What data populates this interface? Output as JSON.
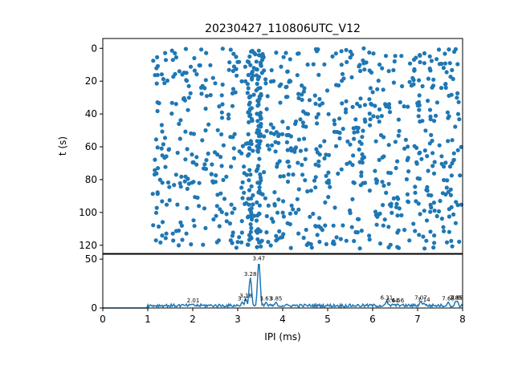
{
  "title": "20230427_110806UTC_V12",
  "chart_data": [
    {
      "type": "scatter",
      "name": "raster",
      "ylabel": "t (s)",
      "xlim": [
        0,
        8
      ],
      "ylim": [
        125,
        -6
      ],
      "yticks": [
        0,
        20,
        40,
        60,
        80,
        100,
        120
      ],
      "ytick_labels": [
        "0",
        "20",
        "40",
        "60",
        "80",
        "100",
        "120"
      ],
      "color": "#1f77b4",
      "point_count": 950,
      "ipi_range": [
        1.0,
        8.0
      ],
      "t_range": [
        0,
        122
      ],
      "dense_columns_ipi": [
        3.28,
        3.47
      ]
    },
    {
      "type": "line",
      "name": "histogram",
      "xlabel": "IPI (ms)",
      "xlim": [
        0,
        8
      ],
      "ylim": [
        0,
        55
      ],
      "xticks": [
        0,
        1,
        2,
        3,
        4,
        5,
        6,
        7,
        8
      ],
      "xtick_labels": [
        "0",
        "1",
        "2",
        "3",
        "4",
        "5",
        "6",
        "7",
        "8"
      ],
      "yticks": [
        0,
        50
      ],
      "ytick_labels": [
        "0",
        "50"
      ],
      "color": "#1f77b4",
      "peaks": [
        {
          "x": 2.01,
          "y": 4,
          "label": "2.01"
        },
        {
          "x": 3.1,
          "y": 6,
          "label": "3.1"
        },
        {
          "x": 3.18,
          "y": 9,
          "label": "3.18"
        },
        {
          "x": 3.28,
          "y": 31,
          "label": "3.28"
        },
        {
          "x": 3.47,
          "y": 47,
          "label": "3.47"
        },
        {
          "x": 3.63,
          "y": 6,
          "label": "3.63"
        },
        {
          "x": 3.85,
          "y": 6,
          "label": "3.85"
        },
        {
          "x": 6.31,
          "y": 7,
          "label": "6.31"
        },
        {
          "x": 6.44,
          "y": 4,
          "label": "6.44"
        },
        {
          "x": 6.56,
          "y": 4,
          "label": "6.56"
        },
        {
          "x": 7.07,
          "y": 7,
          "label": "7.07"
        },
        {
          "x": 7.14,
          "y": 5,
          "label": "7.14"
        },
        {
          "x": 7.68,
          "y": 6,
          "label": "7.68"
        },
        {
          "x": 7.85,
          "y": 7,
          "label": "7.85"
        },
        {
          "x": 7.88,
          "y": 7,
          "label": "7.88"
        }
      ]
    }
  ]
}
